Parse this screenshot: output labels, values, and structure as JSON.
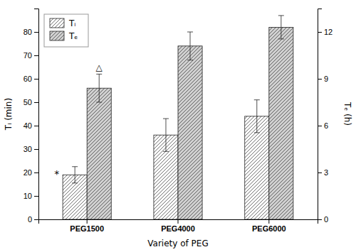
{
  "chart_data": {
    "type": "bar",
    "categories": [
      "PEG1500",
      "PEG4000",
      "PEG6000"
    ],
    "xlabel": "Variety of PEG",
    "ylabel": "Tᵢ (min)",
    "y2label": "Tₑ (h)",
    "series": [
      {
        "name": "Tᵢ",
        "color": "white",
        "values": [
          19,
          36,
          44
        ],
        "errors": [
          3.5,
          7,
          7
        ]
      },
      {
        "name": "Tₑ",
        "color": "#d0d0d0",
        "axis": "y2",
        "values": [
          8.4,
          11.1,
          12.3
        ],
        "errors": [
          0.9,
          0.9,
          0.75
        ]
      }
    ],
    "ylim": [
      0,
      90
    ],
    "yticks": [
      0,
      10,
      20,
      30,
      40,
      50,
      60,
      70,
      80
    ],
    "y2lim": [
      0,
      13.5
    ],
    "y2ticks": [
      0,
      3,
      6,
      9,
      12
    ],
    "annotations": [
      {
        "text": "*",
        "category": "PEG1500",
        "series": "Tᵢ"
      },
      {
        "text": "△",
        "category": "PEG1500",
        "series": "Tₑ"
      }
    ],
    "legend": "upper left",
    "grid": false
  }
}
